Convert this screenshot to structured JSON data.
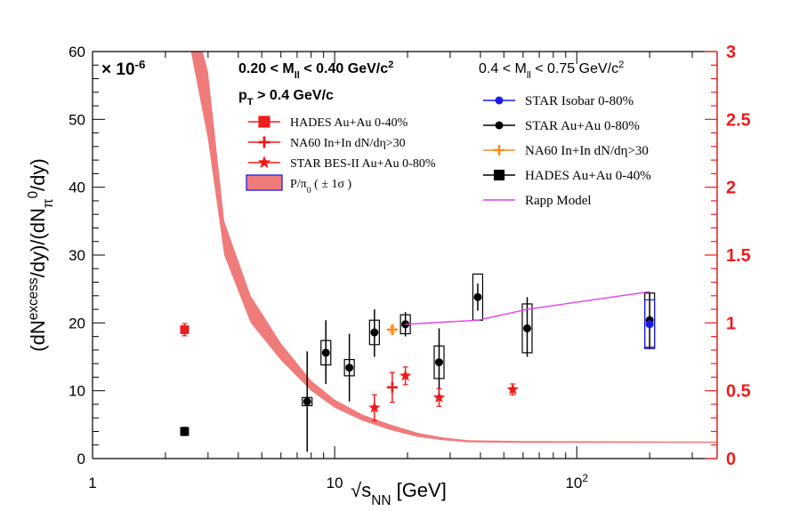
{
  "chart_data": {
    "type": "scatter",
    "x_axis": {
      "label_main": "√s",
      "label_sub": "NN",
      "label_unit": " [GeV]",
      "scale": "log",
      "range": [
        1,
        380
      ],
      "ticks": [
        {
          "value": 1,
          "label": "1"
        },
        {
          "value": 10,
          "label": "10"
        },
        {
          "value": 100,
          "label": "10",
          "sup": "2"
        }
      ]
    },
    "y_axis_left": {
      "label": "(dN^{excess}/dy)/(dN_{π⁰}/dy)",
      "label_parts": [
        "(dN",
        "excess",
        "/dy)/(dN",
        "π",
        "0",
        "/dy)"
      ],
      "range": [
        0,
        60
      ],
      "ticks": [
        0,
        10,
        20,
        30,
        40,
        50,
        60
      ],
      "multiplier": "× 10",
      "multiplier_exp": "-6",
      "color": "#000000"
    },
    "y_axis_right": {
      "range": [
        0,
        3
      ],
      "ticks": [
        {
          "value": 0,
          "label": "0"
        },
        {
          "value": 0.5,
          "label": "0.5"
        },
        {
          "value": 1,
          "label": "1"
        },
        {
          "value": 1.5,
          "label": "1.5"
        },
        {
          "value": 2,
          "label": "2"
        },
        {
          "value": 2.5,
          "label": "2.5"
        },
        {
          "value": 3,
          "label": "3"
        }
      ],
      "color": "#ee1c1c"
    },
    "annotations": {
      "low_mass_window": "0.20 < M",
      "low_mass_window_sub": "ll",
      "low_mass_window_tail": " < 0.40 GeV/c",
      "low_mass_window_sup": "2",
      "pt_cut": "p",
      "pt_cut_sub": "T",
      "pt_cut_tail": " > 0.4 GeV/c",
      "high_mass_window": "0.4 < M",
      "high_mass_window_sub": "ll",
      "high_mass_window_tail": " < 0.75 GeV/c",
      "high_mass_window_sup": "2"
    },
    "legend_left": [
      {
        "label": "HADES Au+Au 0-40%",
        "marker": "square",
        "color": "#ee1c1c"
      },
      {
        "label": "NA60 In+In dN/dη>30",
        "marker": "cross",
        "color": "#ee1c1c"
      },
      {
        "label": "STAR BES-II Au+Au 0-80%",
        "marker": "star",
        "color": "#ee1c1c"
      },
      {
        "label": "P/π",
        "label_sub": "0",
        "label_tail": " ( ± 1σ )",
        "marker": "band",
        "color": "#f07b7b"
      }
    ],
    "legend_right": [
      {
        "label": "STAR Isobar 0-80%",
        "marker": "circle",
        "color": "#1a1aee"
      },
      {
        "label": "STAR Au+Au 0-80%",
        "marker": "circle",
        "color": "#000000"
      },
      {
        "label": "NA60 In+In dN/dη>30",
        "marker": "cross",
        "color": "#f58a1f"
      },
      {
        "label": "HADES Au+Au 0-40%",
        "marker": "square",
        "color": "#000000"
      },
      {
        "label": "Rapp Model",
        "marker": "line",
        "color": "#e040e0"
      }
    ],
    "series": [
      {
        "name": "STAR Au+Au 0-80%",
        "axis": "right",
        "color": "#000000",
        "marker": "circle",
        "points": [
          {
            "x": 7.7,
            "y": 0.42,
            "err_lo": 0.37,
            "err_hi": 0.37,
            "sys_lo": 0.03,
            "sys_hi": 0.03
          },
          {
            "x": 9.2,
            "y": 0.78,
            "err_lo": 0.23,
            "err_hi": 0.24,
            "sys_lo": 0.09,
            "sys_hi": 0.09
          },
          {
            "x": 11.5,
            "y": 0.67,
            "err_lo": 0.25,
            "err_hi": 0.25,
            "sys_lo": 0.06,
            "sys_hi": 0.06
          },
          {
            "x": 14.6,
            "y": 0.93,
            "err_lo": 0.18,
            "err_hi": 0.17,
            "sys_lo": 0.09,
            "sys_hi": 0.09
          },
          {
            "x": 19.6,
            "y": 0.99,
            "err_lo": 0.09,
            "err_hi": 0.09,
            "sys_lo": 0.07,
            "sys_hi": 0.07
          },
          {
            "x": 27,
            "y": 0.71,
            "err_lo": 0.25,
            "err_hi": 0.25,
            "sys_lo": 0.12,
            "sys_hi": 0.12
          },
          {
            "x": 39,
            "y": 1.19,
            "err_lo": 0.1,
            "err_hi": 0.1,
            "sys_lo": 0.17,
            "sys_hi": 0.17
          },
          {
            "x": 62.4,
            "y": 0.96,
            "err_lo": 0.21,
            "err_hi": 0.23,
            "sys_lo": 0.18,
            "sys_hi": 0.18
          },
          {
            "x": 200,
            "y": 1.02,
            "err_lo": 0.21,
            "err_hi": 0.2,
            "sys_lo": 0.2,
            "sys_hi": 0.2
          }
        ]
      },
      {
        "name": "STAR Isobar 0-80%",
        "axis": "right",
        "color": "#1a1aee",
        "marker": "circle",
        "points": [
          {
            "x": 200,
            "y": 0.99,
            "err_lo": 0.03,
            "err_hi": 0.03,
            "sys_lo": 0.18,
            "sys_hi": 0.18
          }
        ]
      },
      {
        "name": "NA60 In+In dN/dη>30",
        "axis": "right",
        "color": "#f58a1f",
        "marker": "cross",
        "points": [
          {
            "x": 17.3,
            "y": 0.95,
            "err_lo": 0.02,
            "err_hi": 0.02
          }
        ]
      },
      {
        "name": "HADES Au+Au 0-40%",
        "axis": "right",
        "color": "#000000",
        "marker": "square",
        "points": [
          {
            "x": 2.4,
            "y": 0.2,
            "err_lo": 0.03,
            "err_hi": 0.03
          }
        ]
      },
      {
        "name": "HADES Au+Au 0-40%",
        "axis": "left",
        "color": "#ee1c1c",
        "marker": "square",
        "points": [
          {
            "x": 2.4,
            "y": 19,
            "err_lo": 0.9,
            "err_hi": 0.9
          }
        ]
      },
      {
        "name": "NA60 In+In dN/dη>30",
        "axis": "left",
        "color": "#ee1c1c",
        "marker": "cross",
        "points": [
          {
            "x": 17.3,
            "y": 10.5,
            "err_lo": 2.2,
            "err_hi": 2.2
          }
        ]
      },
      {
        "name": "STAR BES-II Au+Au 0-80%",
        "axis": "left",
        "color": "#ee1c1c",
        "marker": "star",
        "points": [
          {
            "x": 14.6,
            "y": 7.5,
            "err_lo": 1.9,
            "err_hi": 1.9
          },
          {
            "x": 19.6,
            "y": 12.2,
            "err_lo": 1.3,
            "err_hi": 1.3
          },
          {
            "x": 27,
            "y": 9.0,
            "err_lo": 1.3,
            "err_hi": 1.3
          },
          {
            "x": 54.4,
            "y": 10.2,
            "err_lo": 0.8,
            "err_hi": 0.8
          }
        ]
      },
      {
        "name": "Rapp Model",
        "axis": "right",
        "color": "#e040e0",
        "marker": "line",
        "points": [
          {
            "x": 19.6,
            "y": 0.99
          },
          {
            "x": 39,
            "y": 1.02
          },
          {
            "x": 62.4,
            "y": 1.1
          },
          {
            "x": 200,
            "y": 1.23
          }
        ]
      }
    ],
    "band": {
      "name": "P/π⁰ ( ± 1σ )",
      "axis": "left",
      "color": "#f07b7b",
      "points": [
        {
          "x": 2.7,
          "lo": 60,
          "hi": 60
        },
        {
          "x": 3.0,
          "lo": 47,
          "hi": 57
        },
        {
          "x": 3.5,
          "lo": 30,
          "hi": 35
        },
        {
          "x": 4.5,
          "lo": 20,
          "hi": 24
        },
        {
          "x": 6,
          "lo": 14.5,
          "hi": 17
        },
        {
          "x": 8,
          "lo": 10,
          "hi": 11.5
        },
        {
          "x": 10,
          "lo": 7.5,
          "hi": 8.7
        },
        {
          "x": 13,
          "lo": 5.6,
          "hi": 6.5
        },
        {
          "x": 17,
          "lo": 4.2,
          "hi": 5
        },
        {
          "x": 22,
          "lo": 3.2,
          "hi": 3.8
        },
        {
          "x": 28,
          "lo": 2.7,
          "hi": 3.1
        },
        {
          "x": 36,
          "lo": 2.4,
          "hi": 2.7
        },
        {
          "x": 60,
          "lo": 2.3,
          "hi": 2.6
        },
        {
          "x": 380,
          "lo": 2.3,
          "hi": 2.5
        }
      ]
    },
    "grid": false
  }
}
